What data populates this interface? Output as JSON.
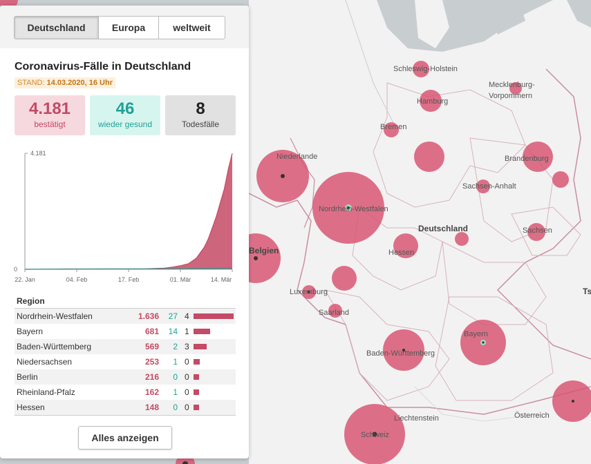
{
  "tabs": [
    "Deutschland",
    "Europa",
    "weltweit"
  ],
  "title": "Coronavirus-Fälle in Deutschland",
  "stand_label": "STAND:",
  "stand_value": "14.03.2020, 16 Uhr",
  "stats": {
    "confirmed": {
      "value": "4.181",
      "label": "bestätigt"
    },
    "recovered": {
      "value": "46",
      "label": "wieder gesund"
    },
    "deaths": {
      "value": "8",
      "label": "Todesfälle"
    }
  },
  "chart_data": {
    "type": "area",
    "title": "",
    "y_max_label": "4.181",
    "y_min_label": "0",
    "ylim": [
      0,
      4181
    ],
    "x_tick_labels": [
      "22. Jan",
      "04. Feb",
      "17. Feb",
      "01. Mär",
      "14. Mär"
    ],
    "x_tick_days": [
      0,
      13,
      26,
      39,
      52
    ],
    "series": [
      {
        "name": "bestätigt",
        "color": "#c44a65",
        "days": [
          0,
          10,
          20,
          30,
          35,
          37,
          39,
          41,
          43,
          45,
          46,
          47,
          48,
          49,
          50,
          51,
          52
        ],
        "values": [
          0,
          12,
          16,
          18,
          40,
          80,
          130,
          200,
          400,
          800,
          1100,
          1500,
          1900,
          2400,
          2900,
          3600,
          4181
        ]
      },
      {
        "name": "wieder gesund",
        "color": "#20a197",
        "days": [
          0,
          20,
          40,
          52
        ],
        "values": [
          0,
          10,
          16,
          46
        ]
      }
    ]
  },
  "region_header": "Region",
  "regions": [
    {
      "name": "Nordrhein-Westfalen",
      "confirmed": "1.636",
      "recovered": "27",
      "deaths": "4",
      "bar": 1.0
    },
    {
      "name": "Bayern",
      "confirmed": "681",
      "recovered": "14",
      "deaths": "1",
      "bar": 0.41
    },
    {
      "name": "Baden-Württemberg",
      "confirmed": "569",
      "recovered": "2",
      "deaths": "3",
      "bar": 0.33
    },
    {
      "name": "Niedersachsen",
      "confirmed": "253",
      "recovered": "1",
      "deaths": "0",
      "bar": 0.15
    },
    {
      "name": "Berlin",
      "confirmed": "216",
      "recovered": "0",
      "deaths": "0",
      "bar": 0.13
    },
    {
      "name": "Rheinland-Pfalz",
      "confirmed": "162",
      "recovered": "1",
      "deaths": "0",
      "bar": 0.1
    },
    {
      "name": "Hessen",
      "confirmed": "148",
      "recovered": "0",
      "deaths": "0",
      "bar": 0.09
    }
  ],
  "show_all_label": "Alles anzeigen",
  "map": {
    "labels": [
      "Schleswig-Holstein",
      "Hamburg",
      "Mecklenburg-",
      "Vorpommern",
      "Bremen",
      "Niederlande",
      "Brandenburg",
      "Sachsen-Anhalt",
      "Nordrhein-Westfalen",
      "Deutschland",
      "Belgien",
      "Hessen",
      "Sachsen",
      "Luxemburg",
      "Saarland",
      "Bayern",
      "Baden-Württemberg",
      "Liechtenstein",
      "Österreich",
      "Schweiz",
      "Ts"
    ],
    "bubble_color": "#d7526f"
  }
}
